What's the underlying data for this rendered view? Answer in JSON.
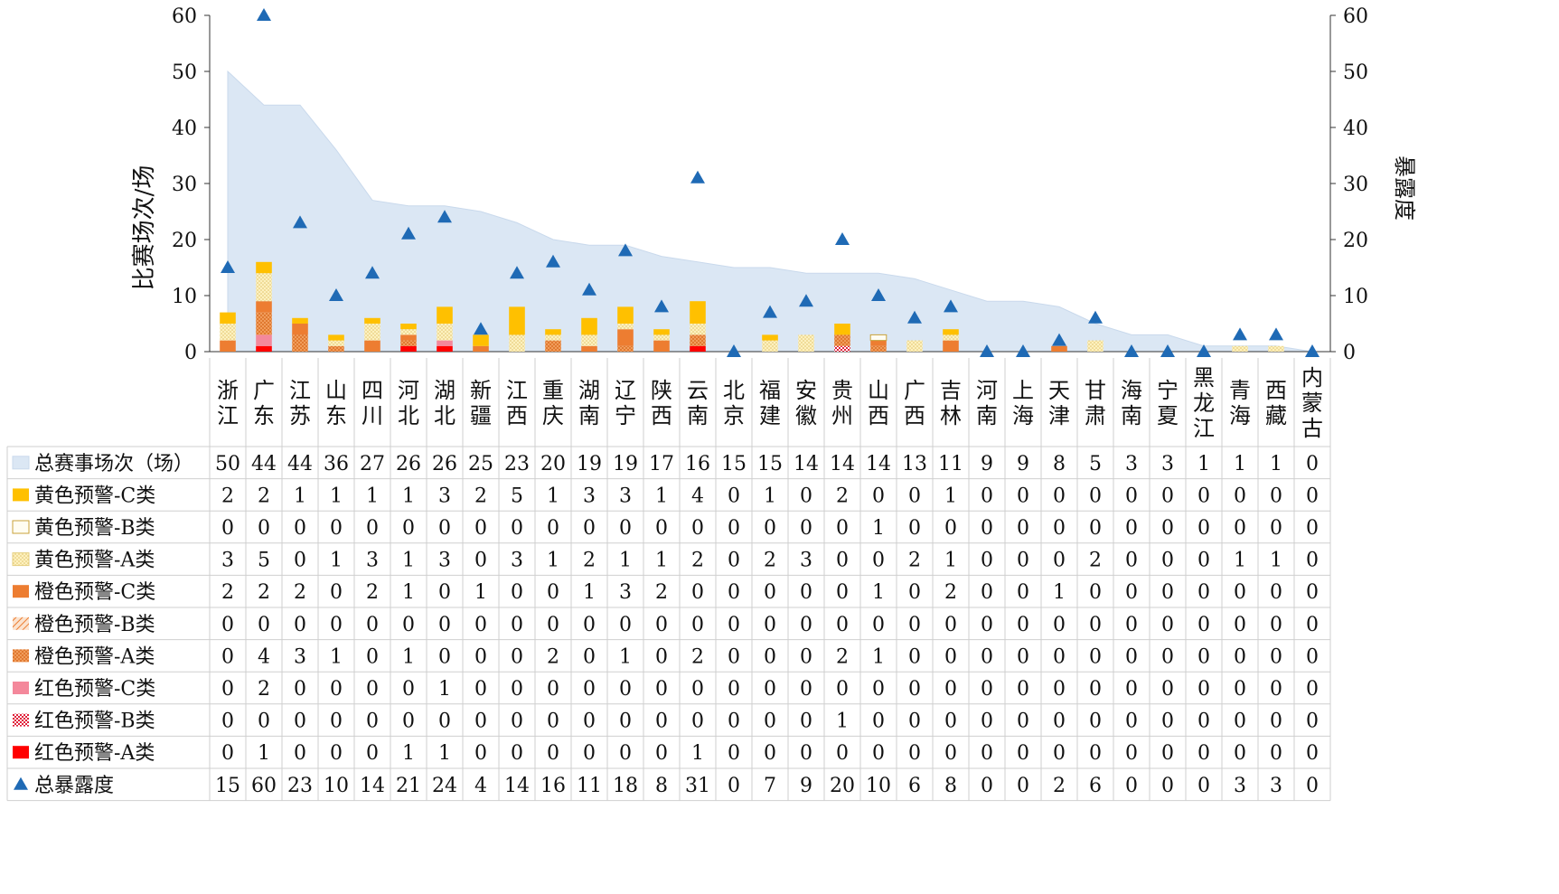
{
  "chart_data": {
    "type": "bar",
    "left_axis": {
      "label": "比赛场次/场",
      "ylim": [
        0,
        60
      ],
      "ticks": [
        0,
        10,
        20,
        30,
        40,
        50,
        60
      ]
    },
    "right_axis": {
      "label": "暴露度",
      "ylim": [
        0,
        60
      ],
      "ticks": [
        0,
        10,
        20,
        30,
        40,
        50,
        60
      ]
    },
    "categories": [
      "浙江",
      "广东",
      "江苏",
      "山东",
      "四川",
      "河北",
      "湖北",
      "新疆",
      "江西",
      "重庆",
      "湖南",
      "辽宁",
      "陕西",
      "云南",
      "北京",
      "福建",
      "安徽",
      "贵州",
      "山西",
      "广西",
      "吉林",
      "河南",
      "上海",
      "天津",
      "甘肃",
      "海南",
      "宁夏",
      "黑龙江",
      "青海",
      "西藏",
      "内蒙古"
    ],
    "series": [
      {
        "name": "总赛事场次（场）",
        "kind": "area",
        "color": "#dbe7f4",
        "values": [
          50,
          44,
          44,
          36,
          27,
          26,
          26,
          25,
          23,
          20,
          19,
          19,
          17,
          16,
          15,
          15,
          14,
          14,
          14,
          13,
          11,
          9,
          9,
          8,
          5,
          3,
          3,
          1,
          1,
          1,
          0
        ]
      },
      {
        "name": "黄色预警-C类",
        "kind": "stack",
        "color": "#ffc000",
        "pattern": "solid",
        "values": [
          2,
          2,
          1,
          1,
          1,
          1,
          3,
          2,
          5,
          1,
          3,
          3,
          1,
          4,
          0,
          1,
          0,
          2,
          0,
          0,
          1,
          0,
          0,
          0,
          0,
          0,
          0,
          0,
          0,
          0,
          0
        ]
      },
      {
        "name": "黄色预警-B类",
        "kind": "stack",
        "color": "#fffdf2",
        "pattern": "outline",
        "values": [
          0,
          0,
          0,
          0,
          0,
          0,
          0,
          0,
          0,
          0,
          0,
          0,
          0,
          0,
          0,
          0,
          0,
          0,
          1,
          0,
          0,
          0,
          0,
          0,
          0,
          0,
          0,
          0,
          0,
          0,
          0
        ]
      },
      {
        "name": "黄色预警-A类",
        "kind": "stack",
        "color": "#fdf1bf",
        "pattern": "dots",
        "values": [
          3,
          5,
          0,
          1,
          3,
          1,
          3,
          0,
          3,
          1,
          2,
          1,
          1,
          2,
          0,
          2,
          3,
          0,
          0,
          2,
          1,
          0,
          0,
          0,
          2,
          0,
          0,
          0,
          1,
          1,
          0
        ]
      },
      {
        "name": "橙色预警-C类",
        "kind": "stack",
        "color": "#ed7d31",
        "pattern": "solid",
        "values": [
          2,
          2,
          2,
          0,
          2,
          1,
          0,
          1,
          0,
          0,
          1,
          3,
          2,
          0,
          0,
          0,
          0,
          0,
          1,
          0,
          2,
          0,
          0,
          1,
          0,
          0,
          0,
          0,
          0,
          0,
          0
        ]
      },
      {
        "name": "橙色预警-B类",
        "kind": "stack",
        "color": "#ed7d31",
        "pattern": "hatch",
        "values": [
          0,
          0,
          0,
          0,
          0,
          0,
          0,
          0,
          0,
          0,
          0,
          0,
          0,
          0,
          0,
          0,
          0,
          0,
          0,
          0,
          0,
          0,
          0,
          0,
          0,
          0,
          0,
          0,
          0,
          0,
          0
        ]
      },
      {
        "name": "橙色预警-A类",
        "kind": "stack",
        "color": "#ed7d31",
        "pattern": "dots",
        "values": [
          0,
          4,
          3,
          1,
          0,
          1,
          0,
          0,
          0,
          2,
          0,
          1,
          0,
          2,
          0,
          0,
          0,
          2,
          1,
          0,
          0,
          0,
          0,
          0,
          0,
          0,
          0,
          0,
          0,
          0,
          0
        ]
      },
      {
        "name": "红色预警-C类",
        "kind": "stack",
        "color": "#f4889b",
        "pattern": "solid",
        "values": [
          0,
          2,
          0,
          0,
          0,
          0,
          1,
          0,
          0,
          0,
          0,
          0,
          0,
          0,
          0,
          0,
          0,
          0,
          0,
          0,
          0,
          0,
          0,
          0,
          0,
          0,
          0,
          0,
          0,
          0,
          0
        ]
      },
      {
        "name": "红色预警-B类",
        "kind": "stack",
        "color": "#e0203a",
        "pattern": "checker",
        "values": [
          0,
          0,
          0,
          0,
          0,
          0,
          0,
          0,
          0,
          0,
          0,
          0,
          0,
          0,
          0,
          0,
          0,
          1,
          0,
          0,
          0,
          0,
          0,
          0,
          0,
          0,
          0,
          0,
          0,
          0,
          0
        ]
      },
      {
        "name": "红色预警-A类",
        "kind": "stack",
        "color": "#ff0000",
        "pattern": "solid",
        "values": [
          0,
          1,
          0,
          0,
          0,
          1,
          1,
          0,
          0,
          0,
          0,
          0,
          0,
          1,
          0,
          0,
          0,
          0,
          0,
          0,
          0,
          0,
          0,
          0,
          0,
          0,
          0,
          0,
          0,
          0,
          0
        ]
      },
      {
        "name": "总暴露度",
        "kind": "marker",
        "color": "#1f6ab5",
        "axis": "right",
        "values": [
          15,
          60,
          23,
          10,
          14,
          21,
          24,
          4,
          14,
          16,
          11,
          18,
          8,
          31,
          0,
          7,
          9,
          20,
          10,
          6,
          8,
          0,
          0,
          2,
          6,
          0,
          0,
          0,
          3,
          3,
          0
        ]
      }
    ],
    "grid": false,
    "legend": "table-below"
  }
}
